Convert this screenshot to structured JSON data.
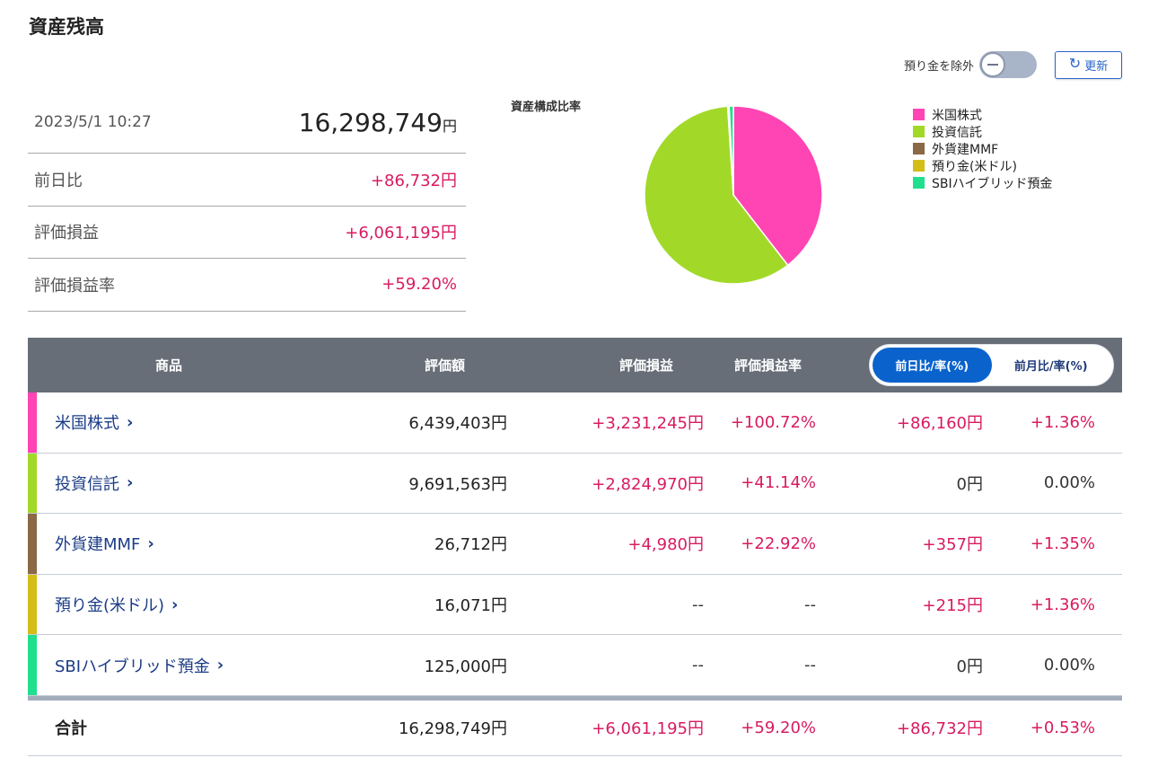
{
  "page": {
    "title": "資産残高"
  },
  "controls": {
    "toggle_label": "預り金を除外",
    "refresh_label": "更新"
  },
  "summary": {
    "datetime": "2023/5/1 10:27",
    "total": "16,298,749",
    "total_unit": "円",
    "rows": [
      {
        "label": "前日比",
        "value": "+86,732円"
      },
      {
        "label": "評価損益",
        "value": "+6,061,195円"
      },
      {
        "label": "評価損益率",
        "value": "+59.20%"
      }
    ]
  },
  "chart_data": {
    "type": "pie",
    "title": "資産構成比率",
    "legend_placement": "right",
    "categories": [
      "米国株式",
      "投資信託",
      "外貨建MMF",
      "預り金(米ドル)",
      "SBIハイブリッド預金"
    ],
    "values": [
      6439403,
      9691563,
      26712,
      16071,
      125000
    ],
    "colors": [
      "#ff44b4",
      "#a2d929",
      "#8b6846",
      "#d4bd16",
      "#20e08e"
    ]
  },
  "table": {
    "headers": {
      "product": "商品",
      "amount": "評価額",
      "gain": "評価損益",
      "rate": "評価損益率"
    },
    "toggle": {
      "active": "前日比/率(%)",
      "inactive": "前月比/率(%)"
    },
    "rows": [
      {
        "name": "米国株式",
        "amount": "6,439,403円",
        "gain": "+3,231,245円",
        "rate": "+100.72%",
        "day": "+86,160円",
        "day_rate": "+1.36%",
        "color": "#ff44b4"
      },
      {
        "name": "投資信託",
        "amount": "9,691,563円",
        "gain": "+2,824,970円",
        "rate": "+41.14%",
        "day": "0円",
        "day_rate": "0.00%",
        "color": "#a2d929"
      },
      {
        "name": "外貨建MMF",
        "amount": "26,712円",
        "gain": "+4,980円",
        "rate": "+22.92%",
        "day": "+357円",
        "day_rate": "+1.35%",
        "color": "#8b6846"
      },
      {
        "name": "預り金(米ドル)",
        "amount": "16,071円",
        "gain": "--",
        "rate": "--",
        "day": "+215円",
        "day_rate": "+1.36%",
        "color": "#d4bd16"
      },
      {
        "name": "SBIハイブリッド預金",
        "amount": "125,000円",
        "gain": "--",
        "rate": "--",
        "day": "0円",
        "day_rate": "0.00%",
        "color": "#20e08e"
      }
    ],
    "total": {
      "name": "合計",
      "amount": "16,298,749円",
      "gain": "+6,061,195円",
      "rate": "+59.20%",
      "day": "+86,732円",
      "day_rate": "+0.53%"
    }
  }
}
